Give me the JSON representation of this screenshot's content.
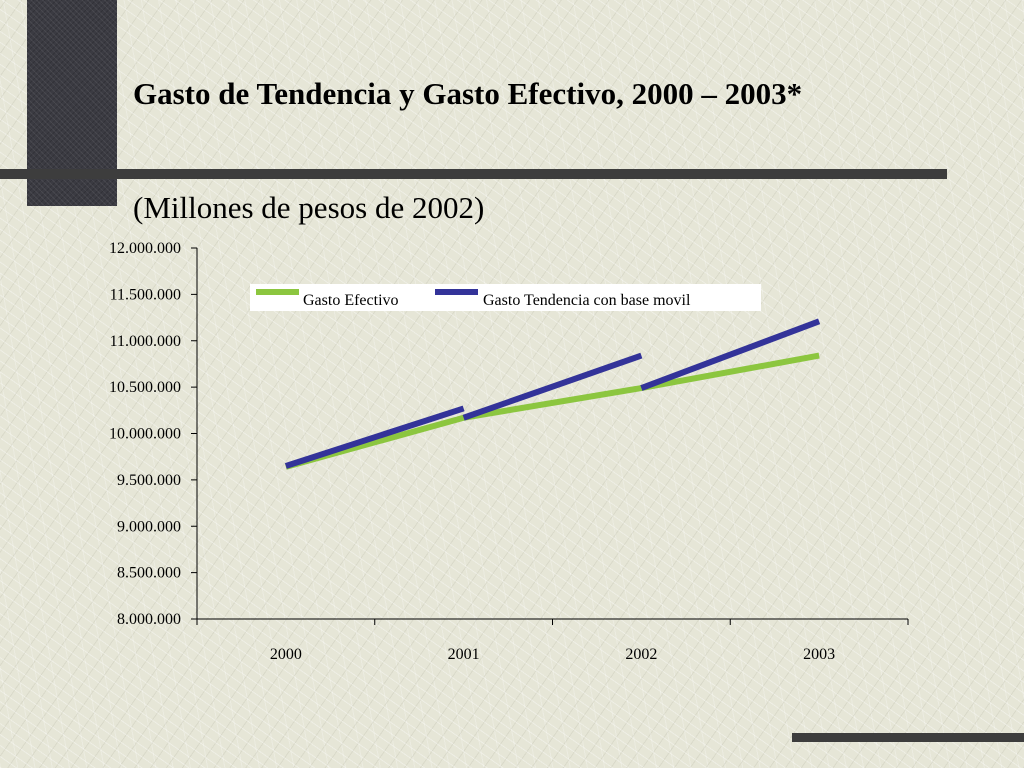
{
  "slide": {
    "title": "Gasto de Tendencia y Gasto Efectivo, 2000 – 2003*",
    "subtitle": "(Millones de pesos de 2002)"
  },
  "chart_data": {
    "type": "line",
    "categories": [
      "2000",
      "2001",
      "2002",
      "2003"
    ],
    "ylim": [
      8000000,
      12000000
    ],
    "y_ticks": [
      8000000,
      8500000,
      9000000,
      9500000,
      10000000,
      10500000,
      11000000,
      11500000,
      12000000
    ],
    "y_tick_labels": [
      "8.000.000",
      "8.500.000",
      "9.000.000",
      "9.500.000",
      "10.000.000",
      "10.500.000",
      "11.000.000",
      "11.500.000",
      "12.000.000"
    ],
    "grid": false,
    "legend_position": "top",
    "series": [
      {
        "name": "Gasto Efectivo",
        "color": "#8cc63f",
        "segments": [
          {
            "x": [
              "2000",
              "2001",
              "2002",
              "2003"
            ],
            "y": [
              9640000,
              10170000,
              10490000,
              10840000
            ]
          }
        ]
      },
      {
        "name": "Gasto Tendencia con base movil",
        "color": "#333399",
        "segments": [
          {
            "x": [
              "2000",
              "2001"
            ],
            "y": [
              9650000,
              10270000
            ]
          },
          {
            "x": [
              "2001",
              "2002"
            ],
            "y": [
              10170000,
              10840000
            ]
          },
          {
            "x": [
              "2002",
              "2003"
            ],
            "y": [
              10490000,
              11210000
            ]
          }
        ]
      }
    ]
  }
}
